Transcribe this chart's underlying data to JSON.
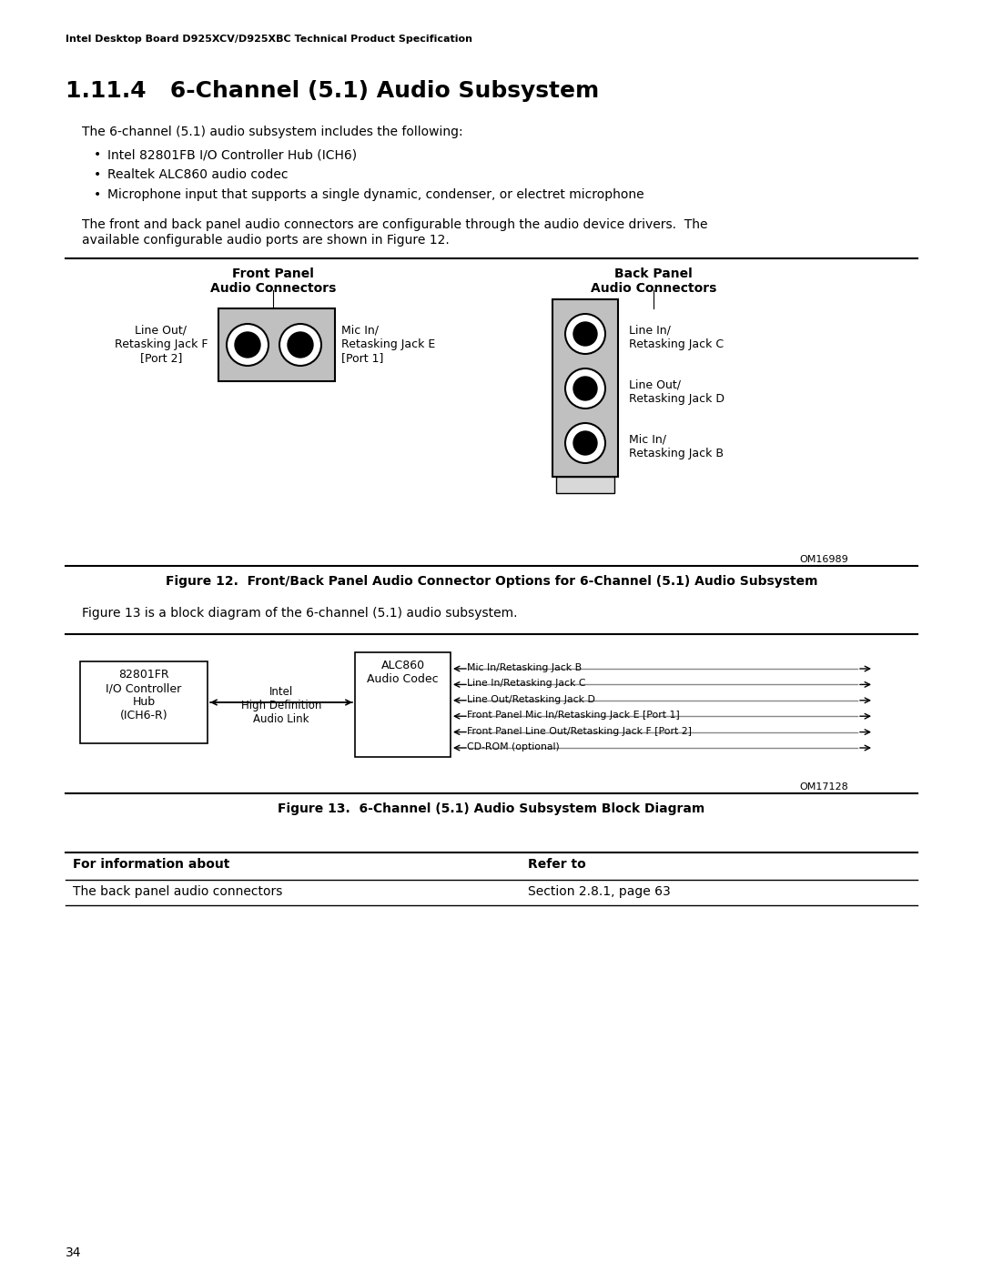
{
  "bg_color": "#ffffff",
  "header_text": "Intel Desktop Board D925XCV/D925XBC Technical Product Specification",
  "section_title": "1.11.4   6-Channel (5.1) Audio Subsystem",
  "body_text1": "The 6-channel (5.1) audio subsystem includes the following:",
  "bullets": [
    "Intel 82801FB I/O Controller Hub (ICH6)",
    "Realtek ALC860 audio codec",
    "Microphone input that supports a single dynamic, condenser, or electret microphone"
  ],
  "body_text2a": "The front and back panel audio connectors are configurable through the audio device drivers.  The",
  "body_text2b": "available configurable audio ports are shown in Figure 12.",
  "fig12_caption": "Figure 12.  Front/Back Panel Audio Connector Options for 6-Channel (5.1) Audio Subsystem",
  "fig13_intro": "Figure 13 is a block diagram of the 6-channel (5.1) audio subsystem.",
  "fig13_caption": "Figure 13.  6-Channel (5.1) Audio Subsystem Block Diagram",
  "om16989": "OM16989",
  "om17128": "OM17128",
  "table_header_left": "For information about",
  "table_header_right": "Refer to",
  "table_row_left": "The back panel audio connectors",
  "table_row_right": "Section 2.8.1, page 63",
  "page_number": "34",
  "front_panel_label": "Front Panel\nAudio Connectors",
  "back_panel_label": "Back Panel\nAudio Connectors",
  "fp_jack_f_label": "Line Out/\nRetasking Jack F\n[Port 2]",
  "fp_jack_e_label": "Mic In/\nRetasking Jack E\n[Port 1]",
  "bp_jack_c_label": "Line In/\nRetasking Jack C",
  "bp_jack_d_label": "Line Out/\nRetasking Jack D",
  "bp_jack_b_label": "Mic In/\nRetasking Jack B",
  "block_ich6r": "82801FR\nI/O Controller\nHub\n(ICH6-R)",
  "block_link": "Intel\nHigh Definition\nAudio Link",
  "block_alc860": "ALC860\nAudio Codec",
  "arrows": [
    "Mic In/Retasking Jack B",
    "Line In/Retasking Jack C",
    "Line Out/Retasking Jack D",
    "Front Panel Mic In/Retasking Jack E [Port 1]",
    "Front Panel Line Out/Retasking Jack F [Port 2]",
    "CD-ROM (optional)"
  ]
}
